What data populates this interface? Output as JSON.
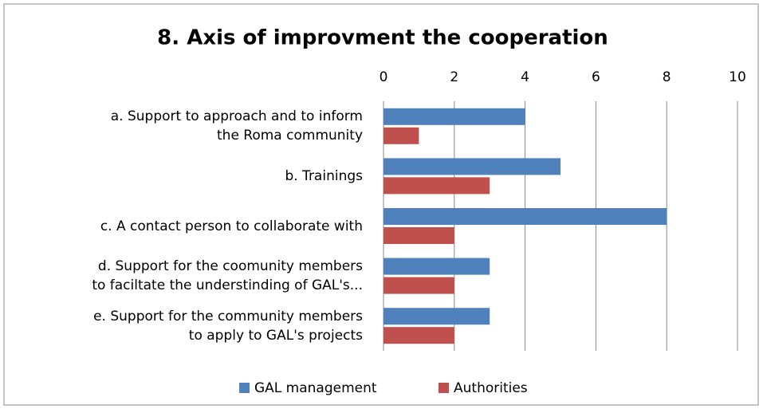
{
  "chart_data": {
    "type": "bar",
    "orientation": "horizontal",
    "title": "8. Axis of improvment the cooperation",
    "categories": [
      "a. Support to approach and to inform\nthe Roma community",
      "b. Trainings",
      "c. A contact person to collaborate with",
      "d. Support for the coomunity members\nto faciltate the understinding of GAL's...",
      "e. Support for the community members\nto apply to GAL's projects"
    ],
    "series": [
      {
        "name": "GAL management",
        "color": "#4f81bd",
        "values": [
          4,
          5,
          8,
          3,
          3
        ]
      },
      {
        "name": "Authorities",
        "color": "#c0504d",
        "values": [
          1,
          3,
          2,
          2,
          2
        ]
      }
    ],
    "xlim": [
      0,
      10
    ],
    "xticks": [
      0,
      2,
      4,
      6,
      8,
      10
    ],
    "grid": true,
    "legend": "bottom"
  }
}
